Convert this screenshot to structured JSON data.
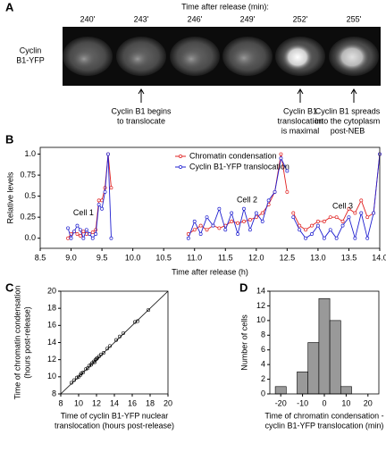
{
  "panel_a": {
    "label": "A",
    "time_header": "Time after release (min):",
    "times": [
      "240'",
      "243'",
      "246'",
      "249'",
      "252'",
      "255'"
    ],
    "row_label": [
      "Cyclin",
      "B1-YFP"
    ],
    "notes": [
      [
        "Cyclin B1 begins",
        "to translocate"
      ],
      [
        "Cyclin B1",
        "translocation",
        "is maximal"
      ],
      [
        "Cyclin B1 spreads",
        "into the cytoplasm",
        "post-NEB"
      ]
    ]
  },
  "chart_data": [
    {
      "type": "line",
      "panel_label": "B",
      "xlabel": [
        "Time after release (h)"
      ],
      "ylabel": [
        "Relative levels"
      ],
      "xlim": [
        8.5,
        14.0
      ],
      "xticks": [
        8.5,
        {
          "value": 9,
          "label": "9.0"
        },
        9.5,
        {
          "value": 10,
          "label": "10.0"
        },
        10.5,
        {
          "value": 11,
          "label": "11.0"
        },
        11.5,
        {
          "value": 12,
          "label": "12.0"
        },
        12.5,
        {
          "value": 13,
          "label": "13.0"
        },
        13.5,
        {
          "value": 14,
          "label": "14.0"
        }
      ],
      "ylim": [
        -0.12,
        1.08
      ],
      "yticks": [
        {
          "value": 0,
          "label": "0.0"
        },
        0.25,
        0.5,
        0.75,
        {
          "value": 1,
          "label": "1.0"
        }
      ],
      "x": [
        8.95,
        9.0,
        9.05,
        9.1,
        9.15,
        9.2,
        9.25,
        9.3,
        9.35,
        9.4,
        9.45,
        9.5,
        9.55,
        9.6,
        9.65,
        null,
        10.9,
        11.0,
        11.1,
        11.2,
        11.3,
        11.4,
        11.5,
        11.6,
        11.7,
        11.8,
        11.9,
        12.0,
        12.1,
        12.2,
        12.3,
        12.4,
        12.5,
        null,
        12.6,
        12.7,
        12.8,
        12.9,
        13.0,
        13.1,
        13.2,
        13.3,
        13.4,
        13.5,
        13.6,
        13.7,
        13.8,
        13.9,
        14.0
      ],
      "series": [
        {
          "name": "Chromatin condensation",
          "color": "#e02020",
          "values": [
            0.0,
            0.05,
            0.08,
            0.05,
            0.03,
            0.08,
            0.05,
            0.05,
            0.07,
            0.1,
            0.45,
            0.45,
            0.6,
            1.0,
            0.6,
            null,
            0.05,
            0.1,
            0.15,
            0.1,
            0.15,
            0.12,
            0.15,
            0.2,
            0.18,
            0.2,
            0.22,
            0.25,
            0.3,
            0.4,
            0.55,
            1.0,
            0.55,
            null,
            0.3,
            0.15,
            0.1,
            0.15,
            0.2,
            0.2,
            0.25,
            0.25,
            0.2,
            0.35,
            0.3,
            0.45,
            0.25,
            0.3,
            1.0
          ]
        },
        {
          "name": "Cyclin B1-YFP translocation",
          "color": "#2020d0",
          "values": [
            0.12,
            0.0,
            0.08,
            0.15,
            0.1,
            0.0,
            0.1,
            0.05,
            0.0,
            0.05,
            0.4,
            0.35,
            0.55,
            1.0,
            0.0,
            null,
            0.0,
            0.2,
            0.05,
            0.25,
            0.15,
            0.35,
            0.1,
            0.3,
            0.05,
            0.35,
            0.1,
            0.3,
            0.2,
            0.45,
            0.55,
            0.95,
            0.8,
            null,
            0.25,
            0.1,
            0.0,
            0.05,
            0.15,
            0.0,
            0.1,
            0.0,
            0.15,
            0.25,
            0.0,
            0.3,
            0.0,
            0.3,
            1.0
          ]
        }
      ],
      "annotations": [
        {
          "text": "Cell 1",
          "x": 9.2,
          "y": 0.3
        },
        {
          "text": "Cell 2",
          "x": 11.85,
          "y": 0.45
        },
        {
          "text": "Cell 3",
          "x": 13.4,
          "y": 0.38
        }
      ]
    },
    {
      "type": "scatter",
      "panel_label": "C",
      "xlabel": [
        "Time of cyclin B1-YFP nuclear",
        "translocation (hours post-release)"
      ],
      "ylabel": [
        "Time of chromatin condensation",
        "(hours post-release)"
      ],
      "xlim": [
        8,
        20
      ],
      "xticks": [
        8,
        10,
        12,
        14,
        16,
        18,
        20
      ],
      "ylim": [
        8,
        20
      ],
      "yticks": [
        8,
        10,
        12,
        14,
        16,
        18,
        20
      ],
      "x": [
        9.2,
        9.5,
        9.8,
        10.0,
        10.2,
        10.3,
        10.5,
        10.8,
        11.0,
        11.2,
        11.4,
        11.5,
        11.7,
        11.8,
        11.9,
        12.0,
        12.1,
        12.3,
        12.5,
        12.8,
        13.2,
        13.5,
        14.2,
        14.6,
        15.0,
        16.3,
        16.6,
        17.8
      ],
      "values": [
        9.3,
        9.6,
        9.9,
        10.0,
        10.2,
        10.4,
        10.5,
        10.9,
        11.0,
        11.3,
        11.4,
        11.6,
        11.8,
        11.7,
        12.0,
        12.1,
        12.2,
        12.4,
        12.6,
        12.8,
        13.3,
        13.6,
        14.3,
        14.7,
        15.1,
        16.4,
        16.5,
        17.8
      ],
      "color": "#000000"
    },
    {
      "type": "histogram",
      "panel_label": "D",
      "xlabel": [
        "Time of chromatin condensation -",
        "cyclin B1-YFP translocation (min)"
      ],
      "ylabel": [
        "Number of cells"
      ],
      "xlim": [
        -25,
        25
      ],
      "xticks": [
        -20,
        -10,
        0,
        10,
        20
      ],
      "ylim": [
        0,
        14
      ],
      "yticks": [
        0,
        2,
        4,
        6,
        8,
        10,
        12,
        14
      ],
      "bins": [
        -22.5,
        -17.5,
        -12.5,
        -7.5,
        -2.5,
        2.5,
        7.5,
        12.5
      ],
      "values": [
        1,
        0,
        3,
        7,
        13,
        10,
        1
      ],
      "color": "#999999"
    }
  ]
}
